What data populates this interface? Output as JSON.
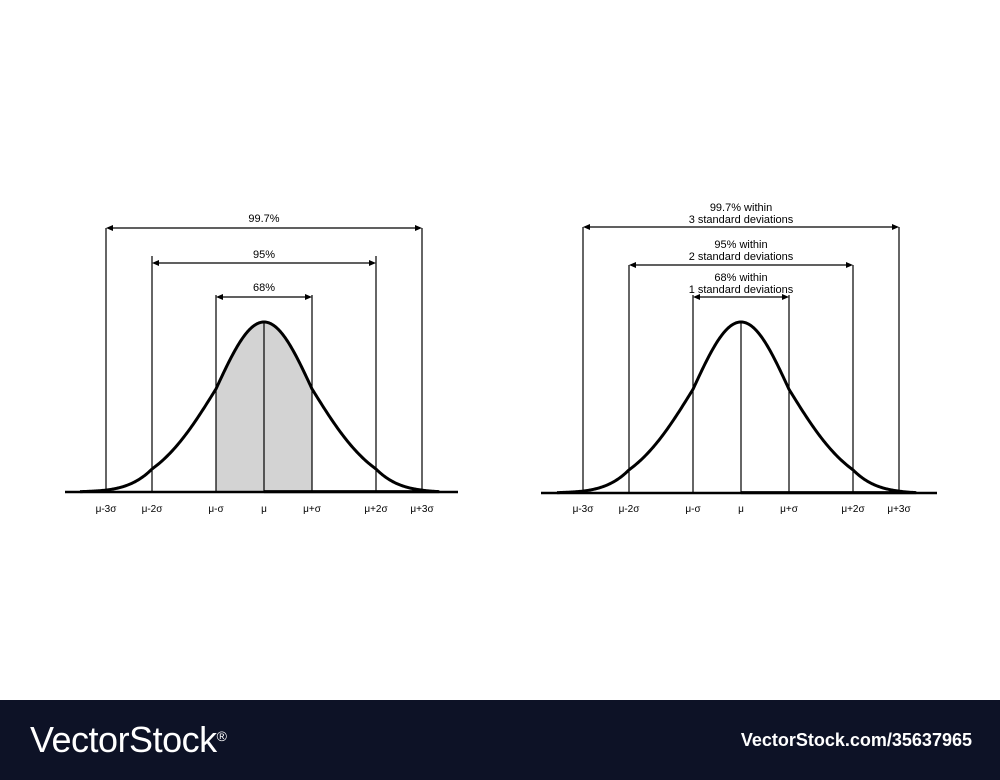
{
  "chart_data": [
    {
      "type": "area",
      "distribution": "normal",
      "title": "",
      "mean": 0,
      "sd": 1,
      "xlim": [
        -3.5,
        3.5
      ],
      "tick_labels": [
        "μ-3σ",
        "μ-2σ",
        "μ-σ",
        "μ",
        "μ+σ",
        "μ+2σ",
        "μ+3σ"
      ],
      "shaded_interval": [
        -1,
        1
      ],
      "intervals": [
        {
          "k": 3,
          "label": "99.7%"
        },
        {
          "k": 2,
          "label": "95%"
        },
        {
          "k": 1,
          "label": "68%"
        }
      ]
    },
    {
      "type": "line",
      "distribution": "normal",
      "title": "",
      "mean": 0,
      "sd": 1,
      "xlim": [
        -3.5,
        3.5
      ],
      "tick_labels": [
        "μ-3σ",
        "μ-2σ",
        "μ-σ",
        "μ",
        "μ+σ",
        "μ+2σ",
        "μ+3σ"
      ],
      "shaded_interval": null,
      "intervals": [
        {
          "k": 3,
          "label": "99.7% within",
          "label2": "3 standard deviations"
        },
        {
          "k": 2,
          "label": "95% within",
          "label2": "2 standard deviations"
        },
        {
          "k": 1,
          "label": "68% within",
          "label2": "1 standard deviations"
        }
      ]
    }
  ],
  "colors": {
    "shade": "#d3d3d3",
    "ink": "#000000",
    "footer_bg": "#0d1226"
  },
  "footer": {
    "logo": "VectorStock",
    "registered_mark": "®",
    "image_id": "VectorStock.com/35637965"
  }
}
